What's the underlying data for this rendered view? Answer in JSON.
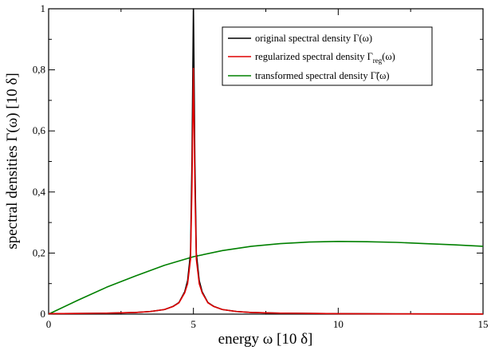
{
  "chart_data": {
    "type": "line",
    "xlabel": "energy ω [10 δ]",
    "ylabel": "spectral densities Γ(ω) [10 δ]",
    "xlim": [
      0,
      15
    ],
    "ylim": [
      0,
      1
    ],
    "xticks": [
      0,
      5,
      10,
      15
    ],
    "xtick_labels": [
      "0",
      "5",
      "10",
      "15"
    ],
    "yticks": [
      0,
      0.2,
      0.4,
      0.6,
      0.8,
      1
    ],
    "ytick_labels": [
      "0",
      "0,2",
      "0,4",
      "0,6",
      "0,8",
      "1"
    ],
    "grid": false,
    "legend_position": "top-right",
    "series": [
      {
        "name": "original spectral density Γ(ω)",
        "color": "#000000",
        "x": [
          0,
          1,
          2,
          3,
          3.5,
          4,
          4.3,
          4.5,
          4.7,
          4.8,
          4.9,
          4.95,
          5,
          5.05,
          5.1,
          5.2,
          5.3,
          5.5,
          5.7,
          6,
          6.5,
          7,
          8,
          10,
          12,
          15
        ],
        "y": [
          0.0015,
          0.0021,
          0.0031,
          0.0055,
          0.0085,
          0.015,
          0.0255,
          0.038,
          0.0735,
          0.11,
          0.2,
          0.5,
          1.0,
          0.5,
          0.2,
          0.11,
          0.0735,
          0.038,
          0.0255,
          0.015,
          0.0085,
          0.0055,
          0.0031,
          0.0015,
          0.0009,
          0.0006
        ]
      },
      {
        "name": "regularized spectral density Γ",
        "name_sub": "reg",
        "name_suffix": "(ω)",
        "color": "#e00000",
        "x": [
          0,
          1,
          2,
          3,
          3.5,
          4,
          4.3,
          4.5,
          4.7,
          4.8,
          4.9,
          4.95,
          5,
          5.05,
          5.1,
          5.2,
          5.3,
          5.5,
          5.7,
          6,
          6.5,
          7,
          8,
          10,
          12,
          15
        ],
        "y": [
          0.0015,
          0.0021,
          0.0031,
          0.0055,
          0.0085,
          0.015,
          0.025,
          0.037,
          0.07,
          0.1,
          0.18,
          0.42,
          0.805,
          0.42,
          0.18,
          0.1,
          0.07,
          0.037,
          0.025,
          0.015,
          0.0085,
          0.0055,
          0.0031,
          0.0015,
          0.0009,
          0.0006
        ]
      },
      {
        "name": "transformed spectral density Γ̃(ω)",
        "color": "#008000",
        "x": [
          0,
          1,
          2,
          3,
          4,
          5,
          6,
          7,
          8,
          9,
          10,
          11,
          12,
          13,
          14,
          15
        ],
        "y": [
          0,
          0.045,
          0.088,
          0.125,
          0.16,
          0.188,
          0.208,
          0.222,
          0.231,
          0.236,
          0.238,
          0.237,
          0.235,
          0.231,
          0.227,
          0.222
        ]
      }
    ]
  }
}
